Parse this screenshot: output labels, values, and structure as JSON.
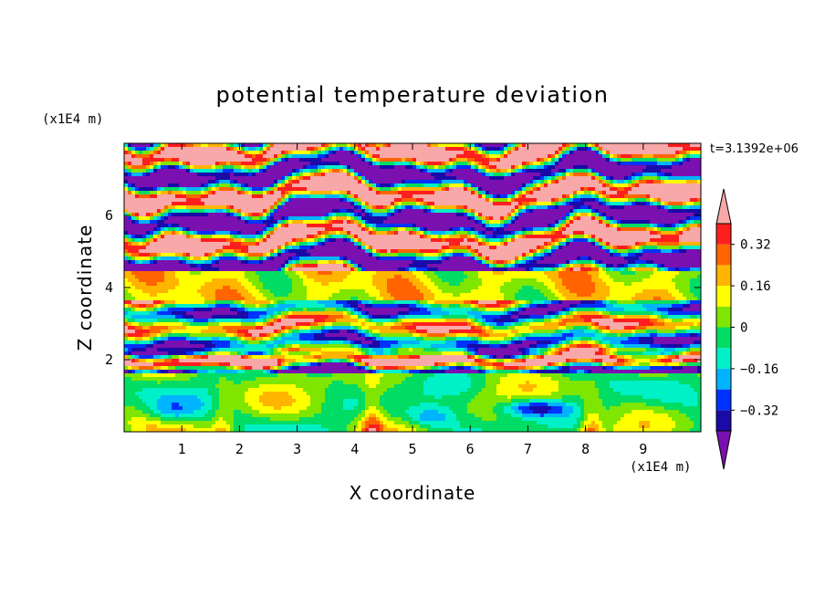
{
  "chart_data": {
    "type": "heatmap",
    "title": "potential temperature deviation",
    "xlabel": "X coordinate",
    "ylabel": "Z coordinate",
    "x_units": "(x1E4 m)",
    "y_units": "(x1E4 m)",
    "time_label": "t=3.1392e+06",
    "xlim": [
      0,
      10
    ],
    "ylim": [
      0,
      8
    ],
    "x_ticks": [
      1,
      2,
      3,
      4,
      5,
      6,
      7,
      8,
      9
    ],
    "y_ticks": [
      2,
      4,
      6
    ],
    "x_tick_labels": [
      "1",
      "2",
      "3",
      "4",
      "5",
      "6",
      "7",
      "8",
      "9"
    ],
    "y_tick_labels": [
      "2",
      "4",
      "6"
    ],
    "colorbar": {
      "levels": [
        -0.4,
        -0.32,
        -0.24,
        -0.16,
        -0.08,
        0,
        0.08,
        0.16,
        0.24,
        0.32,
        0.4
      ],
      "tick_labels": [
        "0.32",
        "0.16",
        "0",
        "−0.16",
        "−0.32"
      ],
      "tick_values": [
        0.32,
        0.16,
        0,
        -0.16,
        -0.32
      ],
      "colors": [
        "#1a0aa8",
        "#0032ff",
        "#00b4ff",
        "#00f0c8",
        "#00dc64",
        "#7ee600",
        "#ffff00",
        "#ffb400",
        "#ff6400",
        "#ff1e1e"
      ],
      "under_color": "#7a10b0",
      "over_color": "#f8a8a8"
    },
    "grid": false
  }
}
